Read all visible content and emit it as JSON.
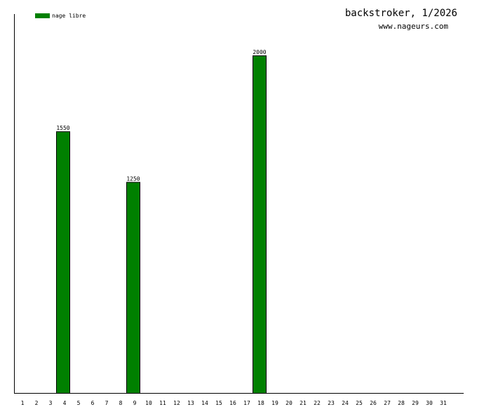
{
  "chart_data": {
    "type": "bar",
    "title": "backstroker, 1/2026",
    "subtitle": "www.nageurs.com",
    "categories": [
      "1",
      "2",
      "3",
      "4",
      "5",
      "6",
      "7",
      "8",
      "9",
      "10",
      "11",
      "12",
      "13",
      "14",
      "15",
      "16",
      "17",
      "18",
      "19",
      "20",
      "21",
      "22",
      "23",
      "24",
      "25",
      "26",
      "27",
      "28",
      "29",
      "30",
      "31"
    ],
    "series": [
      {
        "name": "nage libre",
        "color": "#008000",
        "values": [
          null,
          null,
          null,
          1550,
          null,
          null,
          null,
          null,
          1250,
          null,
          null,
          null,
          null,
          null,
          null,
          null,
          null,
          2000,
          null,
          null,
          null,
          null,
          null,
          null,
          null,
          null,
          null,
          null,
          null,
          null,
          null
        ]
      }
    ],
    "ylim": [
      0,
      2245
    ],
    "data_labels": true
  }
}
